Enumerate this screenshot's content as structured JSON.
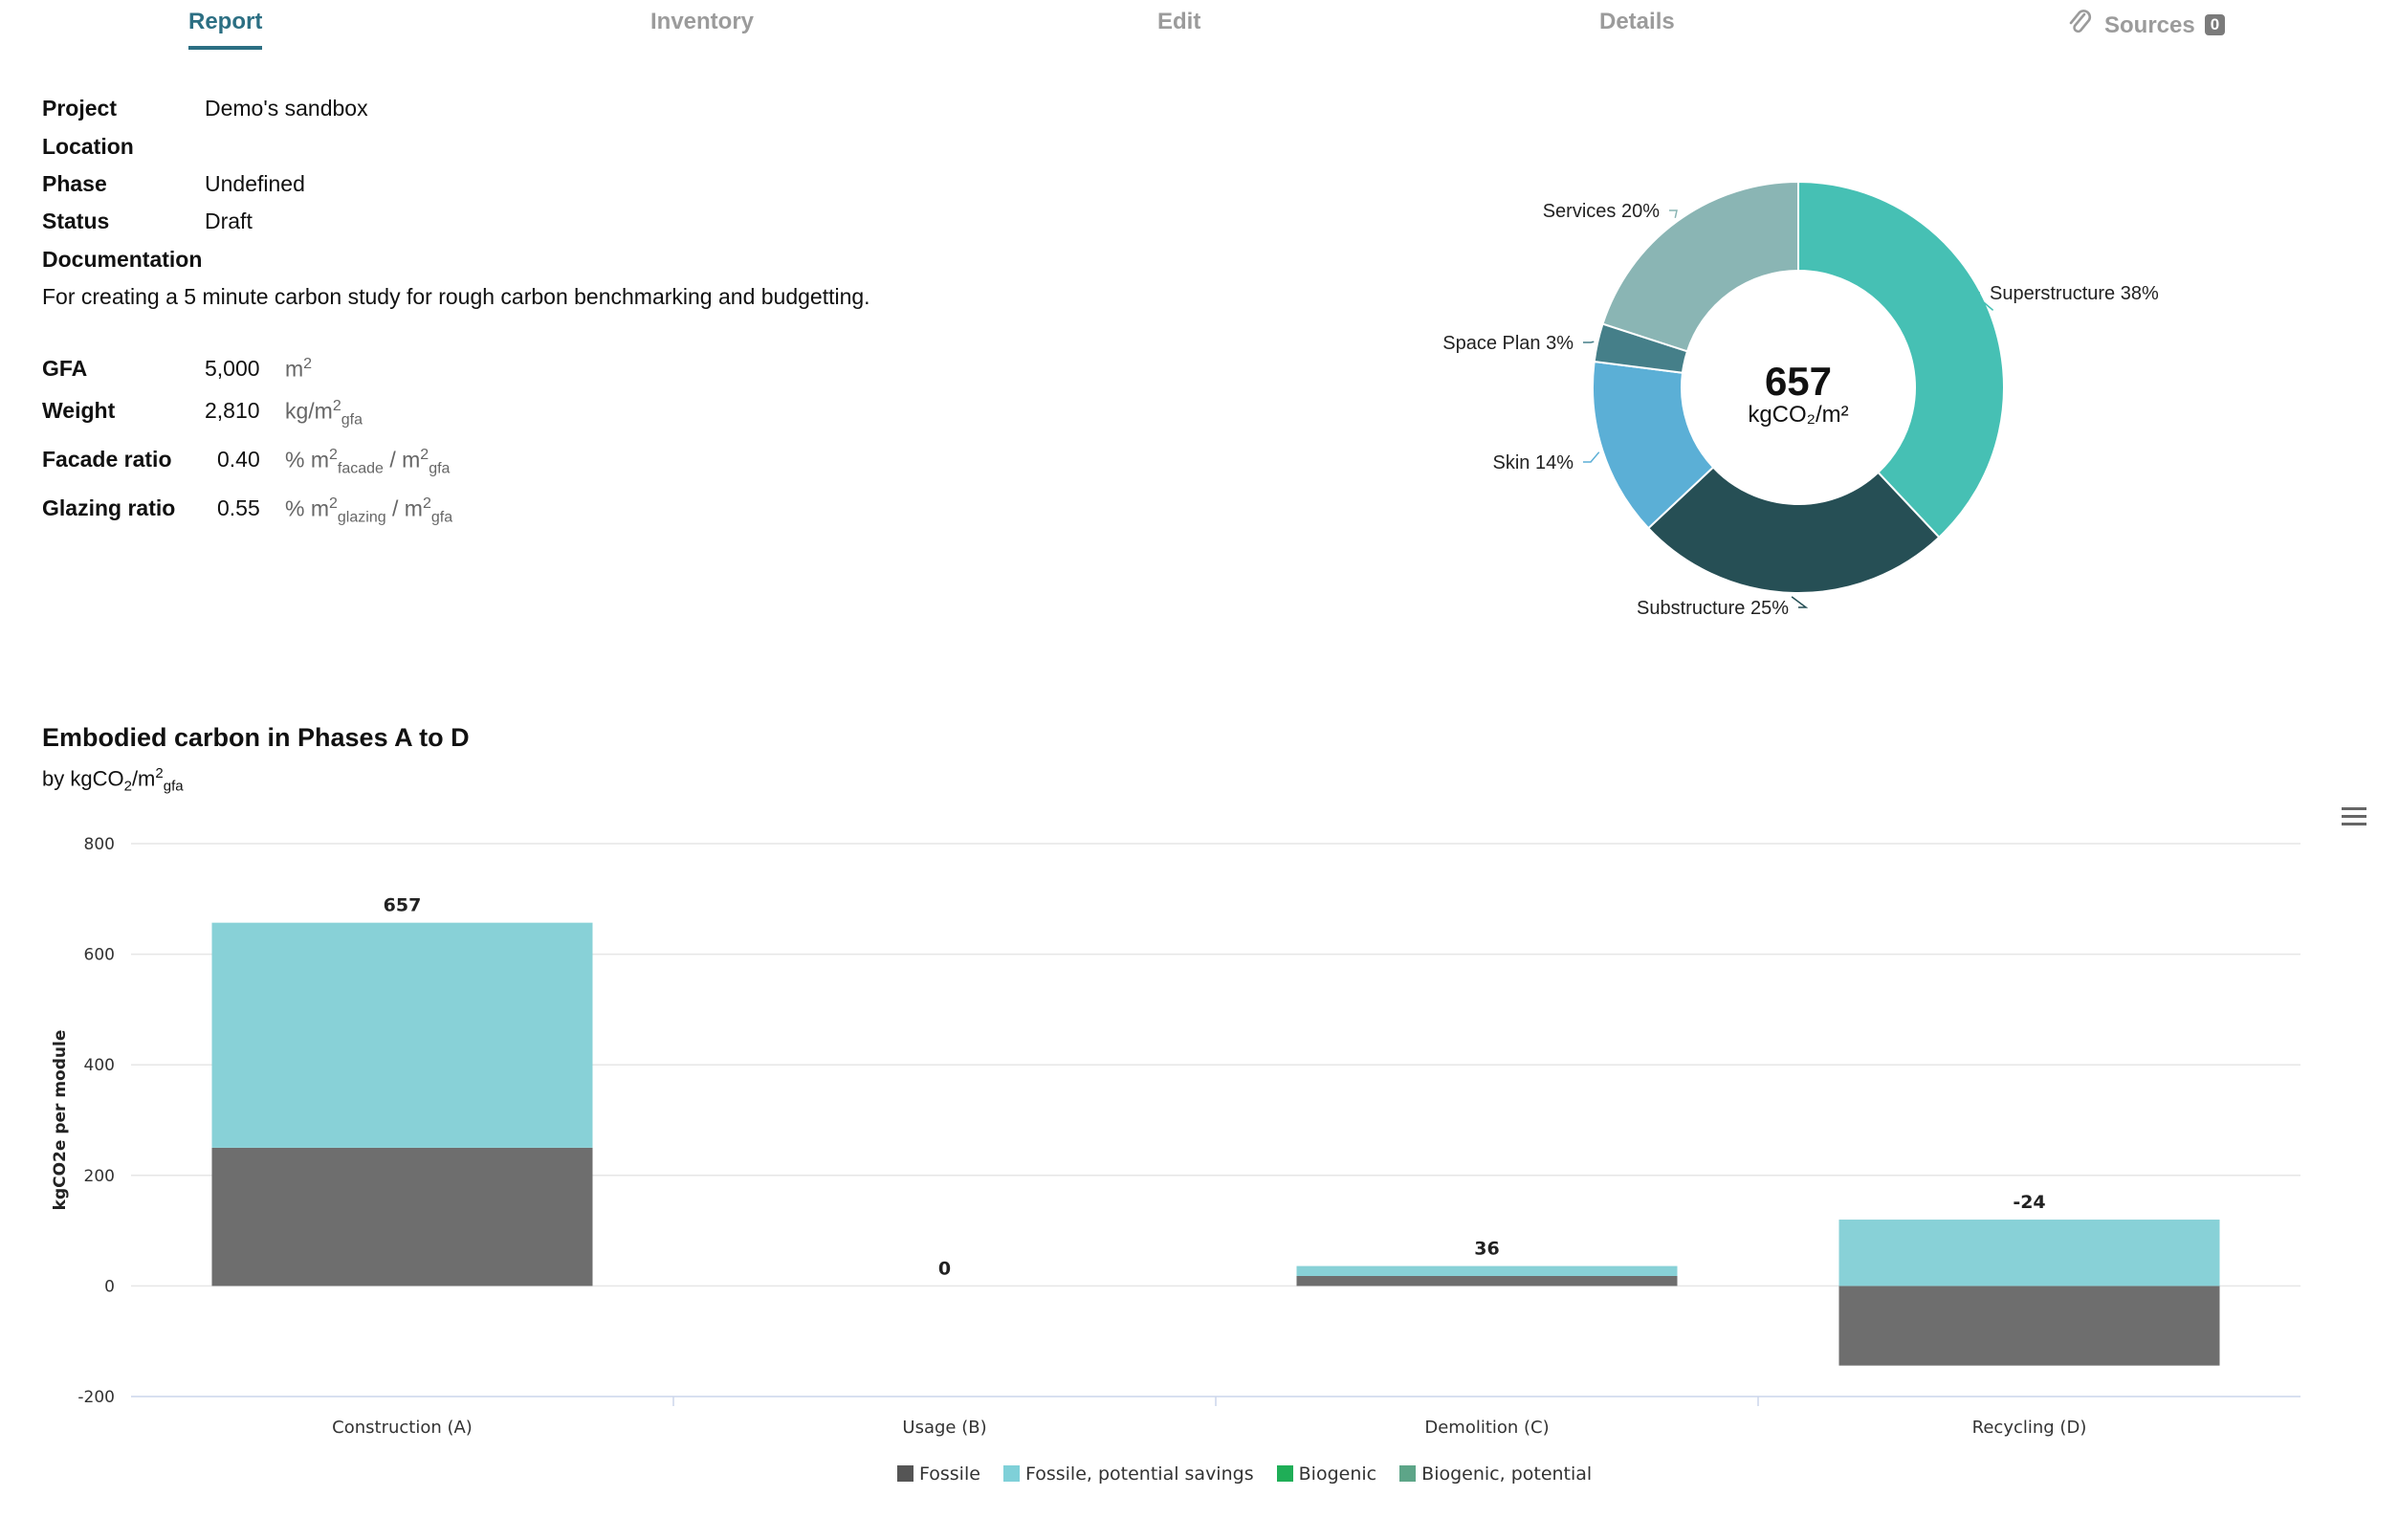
{
  "tabs": [
    {
      "label": "Report",
      "active": true
    },
    {
      "label": "Inventory",
      "active": false
    },
    {
      "label": "Edit",
      "active": false
    },
    {
      "label": "Details",
      "active": false
    },
    {
      "label": "Sources",
      "active": false,
      "badge": "0",
      "icon": "paperclip-icon"
    }
  ],
  "project": {
    "project_label": "Project",
    "project_value": "Demo's sandbox",
    "location_label": "Location",
    "location_value": "",
    "phase_label": "Phase",
    "phase_value": "Undefined",
    "status_label": "Status",
    "status_value": "Draft",
    "documentation_label": "Documentation",
    "documentation_value": "For creating a 5 minute carbon study for rough carbon benchmarking and budgetting."
  },
  "metrics": {
    "gfa_label": "GFA",
    "gfa_value": "5,000",
    "gfa_unit": "m",
    "gfa_unit_sup": "2",
    "weight_label": "Weight",
    "weight_value": "2,810",
    "weight_unit": "kg/m",
    "weight_unit_sup": "2",
    "weight_unit_sub": "gfa",
    "facade_label": "Facade ratio",
    "facade_value": "0.40",
    "facade_unit_a": "% m",
    "facade_sup_a": "2",
    "facade_sub_a": "facade",
    "facade_unit_b": " / m",
    "facade_sup_b": "2",
    "facade_sub_b": "gfa",
    "glazing_label": "Glazing ratio",
    "glazing_value": "0.55",
    "glazing_unit_a": "% m",
    "glazing_sup_a": "2",
    "glazing_sub_a": "glazing",
    "glazing_unit_b": " / m",
    "glazing_sup_b": "2",
    "glazing_sub_b": "gfa"
  },
  "donut": {
    "center_value": "657",
    "center_unit": "kgCO₂/m²",
    "slices": [
      {
        "name": "Superstructure",
        "label": "Superstructure 38%",
        "value": 38,
        "color": "#46c0b4"
      },
      {
        "name": "Substructure",
        "label": "Substructure 25%",
        "value": 25,
        "color": "#264f55"
      },
      {
        "name": "Skin",
        "label": "Skin 14%",
        "value": 14,
        "color": "#5bafd6"
      },
      {
        "name": "Space Plan",
        "label": "Space Plan 3%",
        "value": 3,
        "color": "#457f89"
      },
      {
        "name": "Services",
        "label": "Services 20%",
        "value": 20,
        "color": "#8ab5b4"
      }
    ]
  },
  "chart_section": {
    "title": "Embodied carbon in Phases A to D",
    "subtitle_prefix": "by kgCO",
    "subtitle_sub1": "2",
    "subtitle_mid": "/m",
    "subtitle_sup": "2",
    "subtitle_sub2": "gfa"
  },
  "chart_data": {
    "type": "bar",
    "stacked": true,
    "categories": [
      "Construction (A)",
      "Usage (B)",
      "Demolition (C)",
      "Recycling (D)"
    ],
    "series": [
      {
        "name": "Fossile",
        "values": [
          250,
          0,
          18,
          -144
        ],
        "color": "#6e6e6e"
      },
      {
        "name": "Fossile, potential savings",
        "values": [
          407,
          0,
          18,
          120
        ],
        "color": "#88d1d7"
      },
      {
        "name": "Biogenic",
        "values": [
          0,
          0,
          0,
          0
        ],
        "color": "#1fae57"
      },
      {
        "name": "Biogenic, potential",
        "values": [
          0,
          0,
          0,
          0
        ],
        "color": "#5da588"
      }
    ],
    "totals": [
      "657",
      "0",
      "36",
      "-24"
    ],
    "ylabel": "kgCO2e per module",
    "ylim": [
      -200,
      800
    ],
    "yticks": [
      800,
      600,
      400,
      200,
      0,
      -200
    ],
    "grid": true,
    "legend_position": "bottom"
  }
}
